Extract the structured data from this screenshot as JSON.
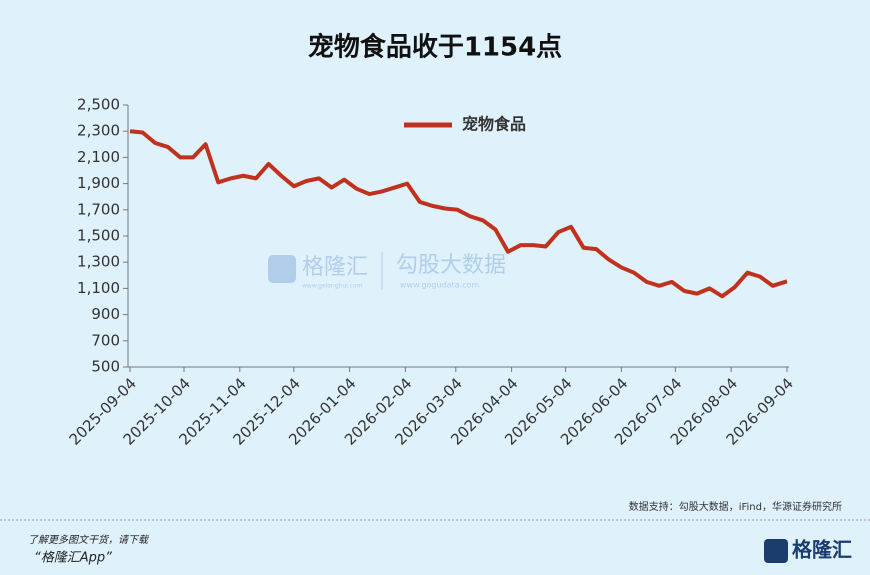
{
  "chart_data": {
    "type": "line",
    "title": "宠物食品收于1154点",
    "x": [
      "2025-09-04",
      "2025-09-11",
      "2025-09-18",
      "2025-09-25",
      "2025-10-02",
      "2025-10-09",
      "2025-10-16",
      "2025-10-23",
      "2025-10-30",
      "2025-11-06",
      "2025-11-13",
      "2025-11-20",
      "2025-11-27",
      "2025-12-04",
      "2025-12-11",
      "2025-12-18",
      "2025-12-25",
      "2026-01-01",
      "2026-01-08",
      "2026-01-15",
      "2026-01-22",
      "2026-01-29",
      "2026-02-05",
      "2026-02-12",
      "2026-02-19",
      "2026-02-26",
      "2026-03-05",
      "2026-03-12",
      "2026-03-19",
      "2026-03-26",
      "2026-04-02",
      "2026-04-09",
      "2026-04-16",
      "2026-04-23",
      "2026-04-30",
      "2026-05-07",
      "2026-05-14",
      "2026-05-21",
      "2026-05-28",
      "2026-06-04",
      "2026-06-11",
      "2026-06-18",
      "2026-06-25",
      "2026-07-02",
      "2026-07-09",
      "2026-07-16",
      "2026-07-23",
      "2026-07-30",
      "2026-08-06",
      "2026-08-13",
      "2026-08-20",
      "2026-08-27",
      "2026-09-04"
    ],
    "series": [
      {
        "name": "宠物食品",
        "color": "#c0321e",
        "values": [
          2300,
          2290,
          2210,
          2180,
          2100,
          2100,
          2200,
          1910,
          1940,
          1960,
          1940,
          2050,
          1960,
          1880,
          1920,
          1940,
          1870,
          1930,
          1860,
          1820,
          1840,
          1870,
          1900,
          1760,
          1730,
          1710,
          1700,
          1650,
          1620,
          1550,
          1380,
          1430,
          1430,
          1420,
          1530,
          1570,
          1410,
          1400,
          1320,
          1260,
          1220,
          1150,
          1120,
          1150,
          1080,
          1060,
          1100,
          1040,
          1110,
          1220,
          1190,
          1120,
          1154
        ]
      }
    ],
    "xlim": [
      "2025-09-04",
      "2026-09-04"
    ],
    "xticks": [
      "2025-09-04",
      "2025-10-04",
      "2025-11-04",
      "2025-12-04",
      "2026-01-04",
      "2026-02-04",
      "2026-03-04",
      "2026-04-04",
      "2026-05-04",
      "2026-06-04",
      "2026-07-04",
      "2026-08-04",
      "2026-09-04"
    ],
    "ylim": [
      500,
      2500
    ],
    "yticks": [
      {
        "value": 2500,
        "label": "2,500"
      },
      {
        "value": 2300,
        "label": "2,300"
      },
      {
        "value": 2100,
        "label": "2,100"
      },
      {
        "value": 1900,
        "label": "1,900"
      },
      {
        "value": 1700,
        "label": "1,700"
      },
      {
        "value": 1500,
        "label": "1,500"
      },
      {
        "value": 1300,
        "label": "1,300"
      },
      {
        "value": 1100,
        "label": "1,100"
      },
      900,
      700,
      500
    ],
    "legend": "top",
    "watermark": {
      "brand": "格隆汇",
      "site": "www.gelonghui.com",
      "brand2": "勾股大数据",
      "site2": "www.gogudata.com"
    },
    "source": "数据支持：勾股大数据，iFind，华源证券研究所"
  },
  "footer": {
    "text": "了解更多图文干货，请下载",
    "app": "“格隆汇App”",
    "logo": "格隆汇"
  }
}
